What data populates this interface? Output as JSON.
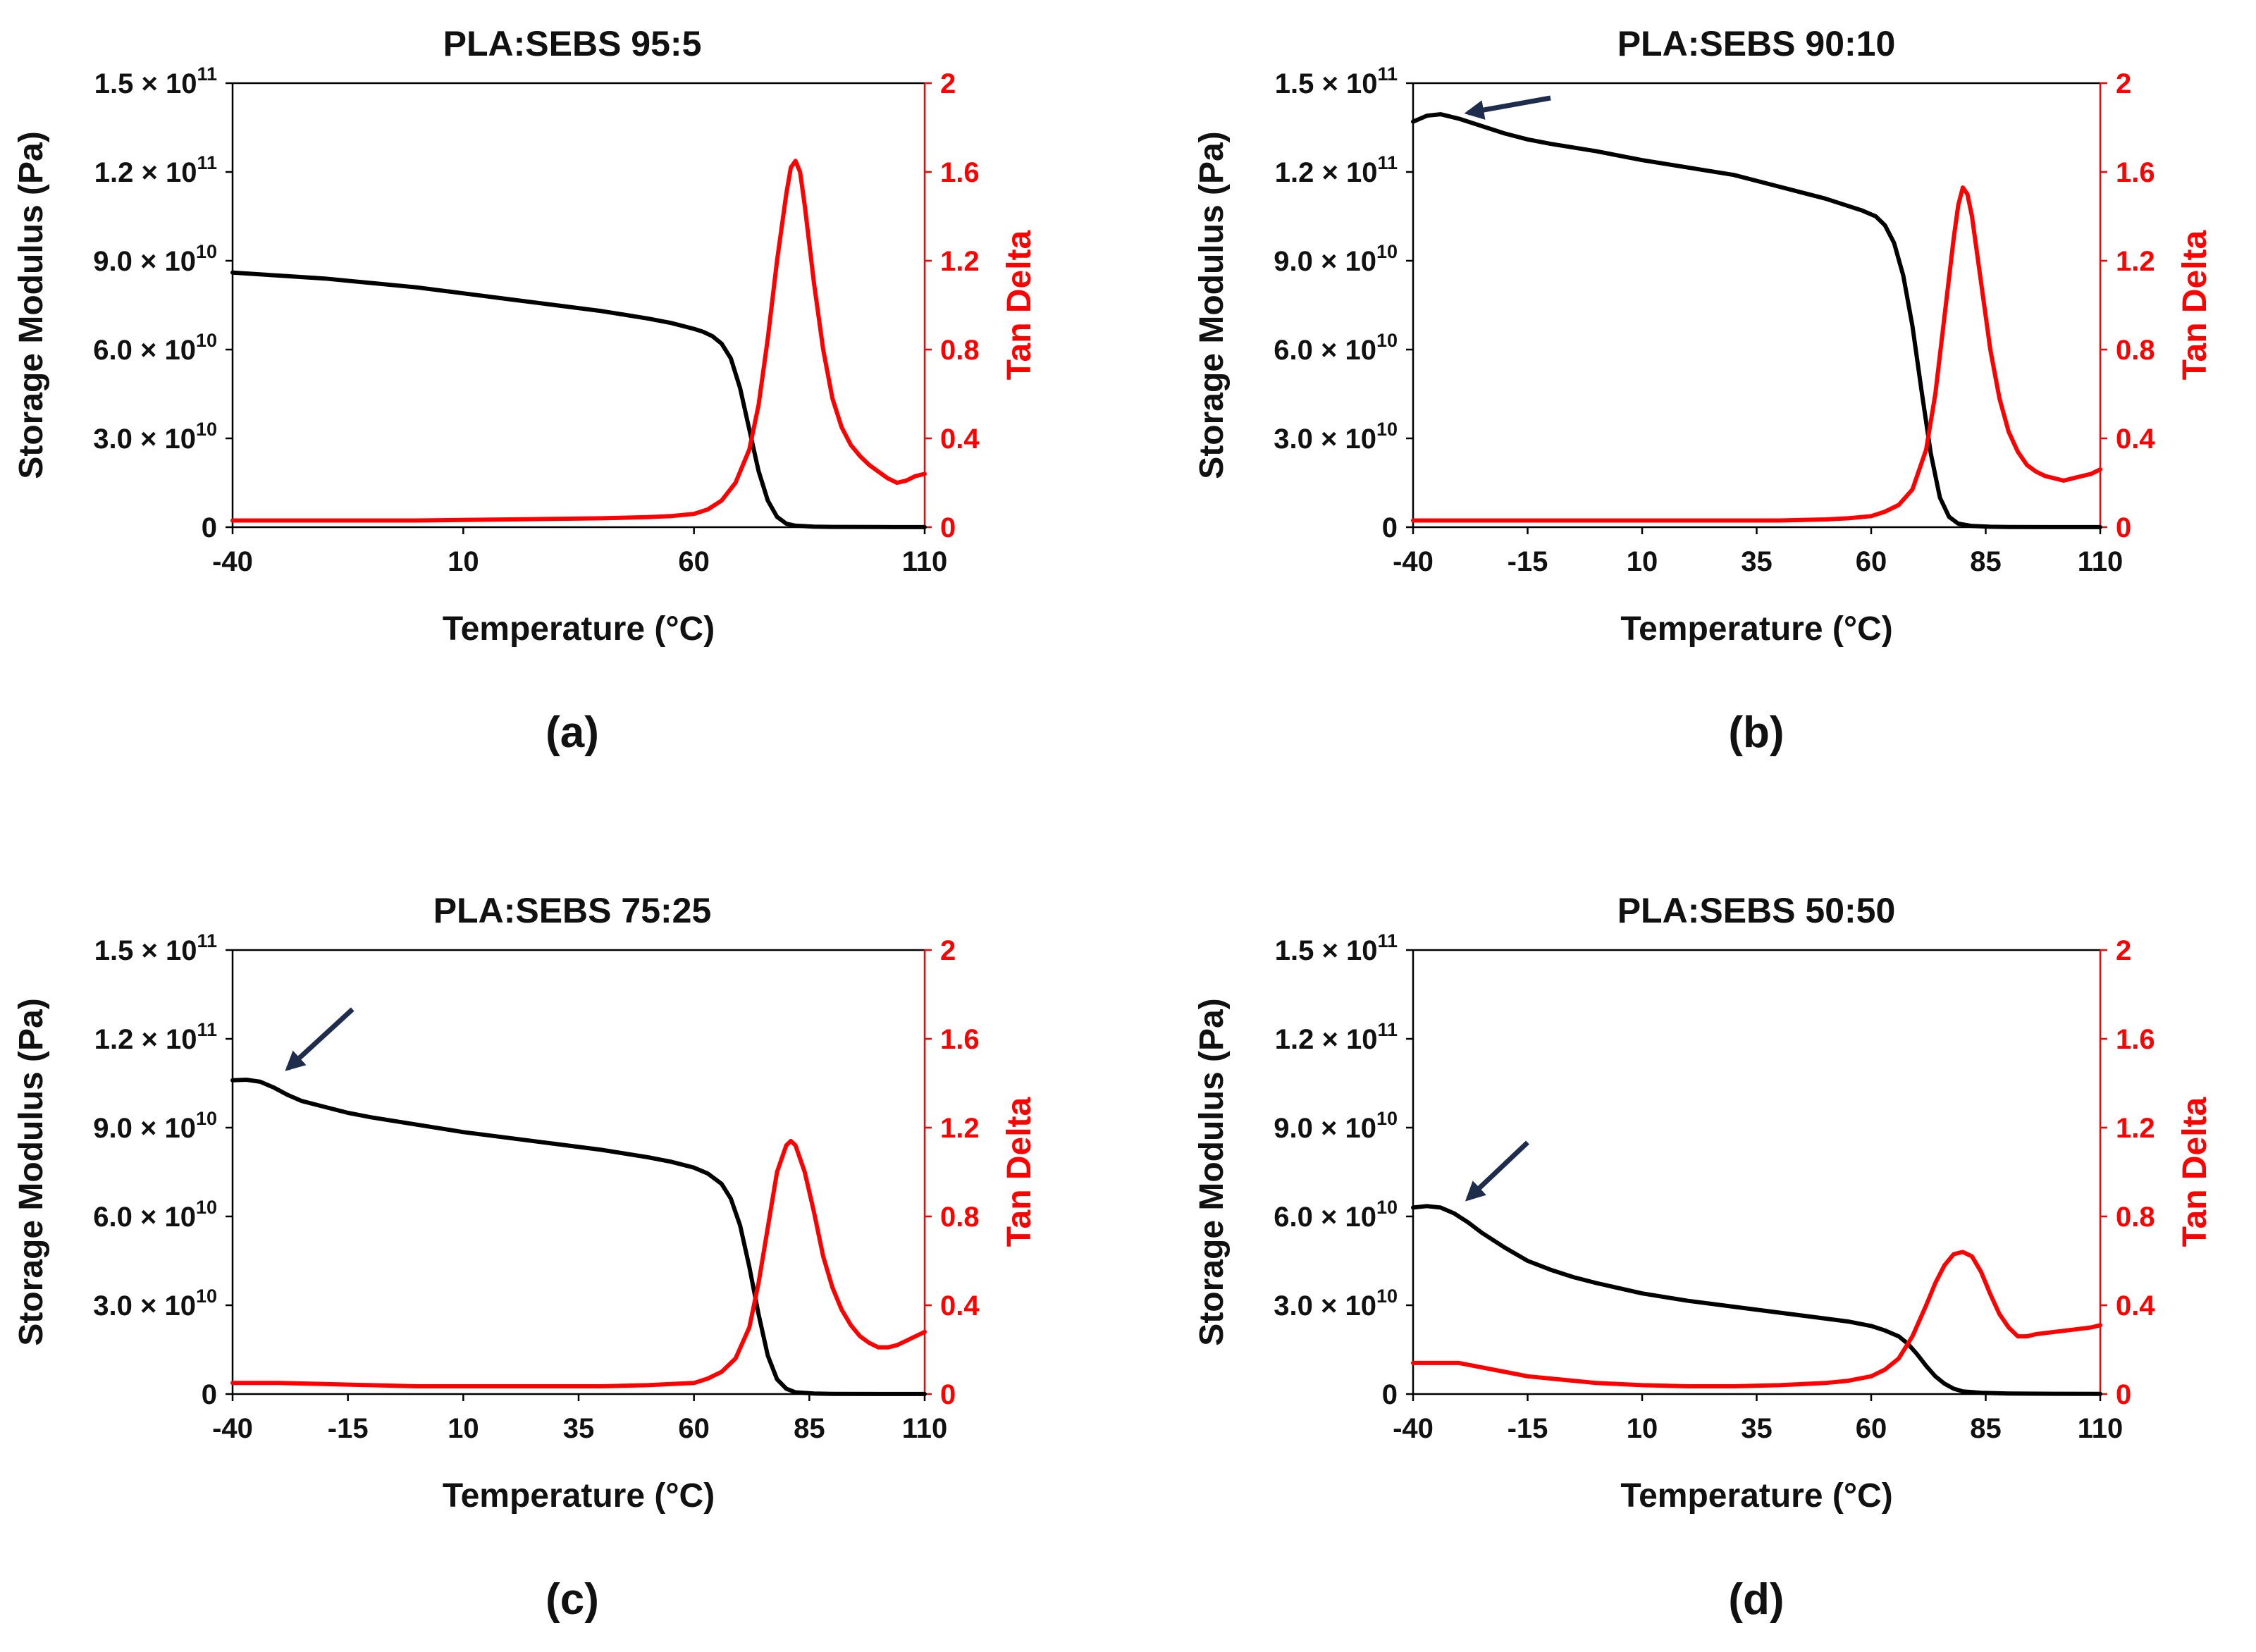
{
  "figure": {
    "x_label": "Temperature (°C)",
    "y_left_label": "Storage Modulus (Pa)",
    "y_right_label": "Tan Delta",
    "left_tick_labels": [
      {
        "base": "0",
        "exp": ""
      },
      {
        "base": "3.0 × 10",
        "exp": "10"
      },
      {
        "base": "6.0 × 10",
        "exp": "10"
      },
      {
        "base": "9.0 × 10",
        "exp": "10"
      },
      {
        "base": "1.2 × 10",
        "exp": "11"
      },
      {
        "base": "1.5 × 10",
        "exp": "11"
      }
    ],
    "right_tick_labels": [
      "0",
      "0.4",
      "0.8",
      "1.2",
      "1.6",
      "2"
    ],
    "colors": {
      "storage_modulus": "#000000",
      "tan_delta": "#ff0000",
      "arrow": "#1f2d4d",
      "axis": "#000000"
    }
  },
  "chart_data": [
    {
      "type": "line",
      "panel_label": "(a)",
      "title": "PLA:SEBS 95:5",
      "xlim": [
        -40,
        110
      ],
      "x_ticks": [
        -40,
        10,
        60,
        110
      ],
      "x_tick_labels": [
        "-40",
        "10",
        "60",
        "110"
      ],
      "ylim_left": [
        0,
        150000000000
      ],
      "ylim_right": [
        0,
        2
      ],
      "arrow": null,
      "series": [
        {
          "name": "Storage Modulus",
          "axis": "left",
          "x": [
            -40,
            -30,
            -20,
            -10,
            0,
            10,
            20,
            30,
            40,
            50,
            55,
            60,
            62,
            64,
            66,
            68,
            70,
            72,
            74,
            76,
            78,
            80,
            82,
            86,
            90,
            100,
            110
          ],
          "values": [
            86000000000,
            85000000000,
            84000000000,
            82500000000,
            81000000000,
            79000000000,
            77000000000,
            75000000000,
            73000000000,
            70500000000,
            69000000000,
            67000000000,
            66000000000,
            64500000000,
            62000000000,
            57000000000,
            47000000000,
            33000000000,
            19000000000,
            9000000000,
            3500000000,
            1200000000,
            500000000,
            200000000,
            100000000,
            50000000,
            30000000
          ]
        },
        {
          "name": "Tan Delta",
          "axis": "right",
          "x": [
            -40,
            -20,
            0,
            20,
            40,
            50,
            55,
            60,
            63,
            66,
            69,
            72,
            74,
            76,
            78,
            80,
            81,
            82,
            83,
            84,
            86,
            88,
            90,
            92,
            94,
            96,
            98,
            100,
            102,
            104,
            106,
            108,
            110
          ],
          "values": [
            0.03,
            0.03,
            0.03,
            0.035,
            0.04,
            0.045,
            0.05,
            0.06,
            0.08,
            0.12,
            0.2,
            0.35,
            0.55,
            0.85,
            1.2,
            1.5,
            1.62,
            1.65,
            1.6,
            1.45,
            1.1,
            0.8,
            0.58,
            0.45,
            0.37,
            0.32,
            0.28,
            0.25,
            0.22,
            0.2,
            0.21,
            0.23,
            0.24
          ]
        }
      ]
    },
    {
      "type": "line",
      "panel_label": "(b)",
      "title": "PLA:SEBS 90:10",
      "xlim": [
        -40,
        110
      ],
      "x_ticks": [
        -40,
        -15,
        10,
        35,
        60,
        85,
        110
      ],
      "x_tick_labels": [
        "-40",
        "-15",
        "10",
        "35",
        "60",
        "85",
        "110"
      ],
      "ylim_left": [
        0,
        150000000000
      ],
      "ylim_right": [
        0,
        2
      ],
      "arrow": {
        "x_from": -10,
        "y_from": 145000000000,
        "x_to": -28,
        "y_to": 140000000000
      },
      "series": [
        {
          "name": "Storage Modulus",
          "axis": "left",
          "x": [
            -40,
            -37,
            -34,
            -30,
            -25,
            -20,
            -15,
            -10,
            0,
            10,
            20,
            30,
            40,
            50,
            55,
            58,
            61,
            63,
            65,
            67,
            69,
            71,
            73,
            75,
            77,
            79,
            82,
            86,
            90,
            100,
            110
          ],
          "values": [
            137000000000,
            139000000000,
            139500000000,
            138000000000,
            135500000000,
            133000000000,
            131000000000,
            129500000000,
            127000000000,
            124000000000,
            121500000000,
            119000000000,
            115000000000,
            111000000000,
            108500000000,
            107000000000,
            105000000000,
            102000000000,
            96000000000,
            85000000000,
            68000000000,
            46000000000,
            25000000000,
            10000000000,
            3500000000,
            1200000000,
            400000000,
            150000000,
            80000000,
            30000000,
            20000000
          ]
        },
        {
          "name": "Tan Delta",
          "axis": "right",
          "x": [
            -40,
            -20,
            0,
            20,
            40,
            50,
            55,
            60,
            63,
            66,
            69,
            72,
            74,
            76,
            78,
            79,
            80,
            81,
            82,
            84,
            86,
            88,
            90,
            92,
            94,
            96,
            98,
            100,
            102,
            104,
            106,
            108,
            110
          ],
          "values": [
            0.03,
            0.03,
            0.03,
            0.03,
            0.03,
            0.035,
            0.04,
            0.05,
            0.07,
            0.1,
            0.17,
            0.35,
            0.6,
            0.95,
            1.3,
            1.45,
            1.53,
            1.5,
            1.4,
            1.1,
            0.8,
            0.58,
            0.43,
            0.34,
            0.28,
            0.25,
            0.23,
            0.22,
            0.21,
            0.22,
            0.23,
            0.24,
            0.26
          ]
        }
      ]
    },
    {
      "type": "line",
      "panel_label": "(c)",
      "title": "PLA:SEBS 75:25",
      "xlim": [
        -40,
        110
      ],
      "x_ticks": [
        -40,
        -15,
        10,
        35,
        60,
        85,
        110
      ],
      "x_tick_labels": [
        "-40",
        "-15",
        "10",
        "35",
        "60",
        "85",
        "110"
      ],
      "ylim_left": [
        0,
        150000000000
      ],
      "ylim_right": [
        0,
        2
      ],
      "arrow": {
        "x_from": -14,
        "y_from": 130000000000,
        "x_to": -28,
        "y_to": 110000000000
      },
      "series": [
        {
          "name": "Storage Modulus",
          "axis": "left",
          "x": [
            -40,
            -37,
            -34,
            -31,
            -28,
            -25,
            -20,
            -15,
            -10,
            0,
            10,
            20,
            30,
            40,
            50,
            55,
            60,
            63,
            66,
            68,
            70,
            72,
            74,
            76,
            78,
            80,
            82,
            86,
            90,
            100,
            110
          ],
          "values": [
            106000000000,
            106200000000,
            105500000000,
            103500000000,
            101000000000,
            99000000000,
            97000000000,
            95000000000,
            93500000000,
            91000000000,
            88500000000,
            86500000000,
            84500000000,
            82500000000,
            80000000000,
            78500000000,
            76500000000,
            74500000000,
            71000000000,
            66000000000,
            57000000000,
            43000000000,
            27000000000,
            13000000000,
            5000000000,
            1800000000,
            600000000,
            200000000,
            80000000,
            30000000,
            20000000
          ]
        },
        {
          "name": "Tan Delta",
          "axis": "right",
          "x": [
            -40,
            -30,
            -20,
            -10,
            0,
            10,
            20,
            30,
            40,
            50,
            55,
            60,
            63,
            66,
            69,
            72,
            74,
            76,
            78,
            80,
            81,
            82,
            84,
            86,
            88,
            90,
            92,
            94,
            96,
            98,
            100,
            102,
            104,
            106,
            108,
            110
          ],
          "values": [
            0.05,
            0.05,
            0.045,
            0.04,
            0.035,
            0.035,
            0.035,
            0.035,
            0.035,
            0.04,
            0.045,
            0.05,
            0.07,
            0.1,
            0.16,
            0.3,
            0.5,
            0.75,
            1.0,
            1.12,
            1.14,
            1.12,
            1.0,
            0.82,
            0.62,
            0.48,
            0.38,
            0.31,
            0.26,
            0.23,
            0.21,
            0.21,
            0.22,
            0.24,
            0.26,
            0.28
          ]
        }
      ]
    },
    {
      "type": "line",
      "panel_label": "(d)",
      "title": "PLA:SEBS 50:50",
      "xlim": [
        -40,
        110
      ],
      "x_ticks": [
        -40,
        -15,
        10,
        35,
        60,
        85,
        110
      ],
      "x_tick_labels": [
        "-40",
        "-15",
        "10",
        "35",
        "60",
        "85",
        "110"
      ],
      "ylim_left": [
        0,
        150000000000
      ],
      "ylim_right": [
        0,
        2
      ],
      "arrow": {
        "x_from": -15,
        "y_from": 85000000000,
        "x_to": -28,
        "y_to": 66000000000
      },
      "series": [
        {
          "name": "Storage Modulus",
          "axis": "left",
          "x": [
            -40,
            -37,
            -34,
            -31,
            -28,
            -25,
            -20,
            -15,
            -10,
            -5,
            0,
            10,
            20,
            30,
            40,
            50,
            55,
            60,
            63,
            66,
            68,
            70,
            72,
            74,
            76,
            78,
            80,
            84,
            90,
            100,
            110
          ],
          "values": [
            63000000000,
            63500000000,
            63000000000,
            61000000000,
            58000000000,
            54500000000,
            49500000000,
            45000000000,
            42000000000,
            39500000000,
            37500000000,
            34000000000,
            31500000000,
            29500000000,
            27500000000,
            25500000000,
            24500000000,
            23000000000,
            21500000000,
            19500000000,
            17000000000,
            13500000000,
            9500000000,
            6000000000,
            3500000000,
            1800000000,
            900000000,
            400000000,
            200000000,
            100000000,
            80000000
          ]
        },
        {
          "name": "Tan Delta",
          "axis": "right",
          "x": [
            -40,
            -35,
            -30,
            -25,
            -20,
            -15,
            -10,
            0,
            10,
            20,
            30,
            40,
            50,
            55,
            60,
            63,
            66,
            69,
            72,
            74,
            76,
            78,
            80,
            82,
            84,
            86,
            88,
            90,
            92,
            94,
            96,
            100,
            104,
            108,
            110
          ],
          "values": [
            0.14,
            0.14,
            0.14,
            0.12,
            0.1,
            0.08,
            0.07,
            0.05,
            0.04,
            0.035,
            0.035,
            0.04,
            0.05,
            0.06,
            0.08,
            0.11,
            0.16,
            0.26,
            0.4,
            0.5,
            0.58,
            0.63,
            0.64,
            0.62,
            0.55,
            0.45,
            0.36,
            0.3,
            0.26,
            0.26,
            0.27,
            0.28,
            0.29,
            0.3,
            0.31
          ]
        }
      ]
    }
  ]
}
